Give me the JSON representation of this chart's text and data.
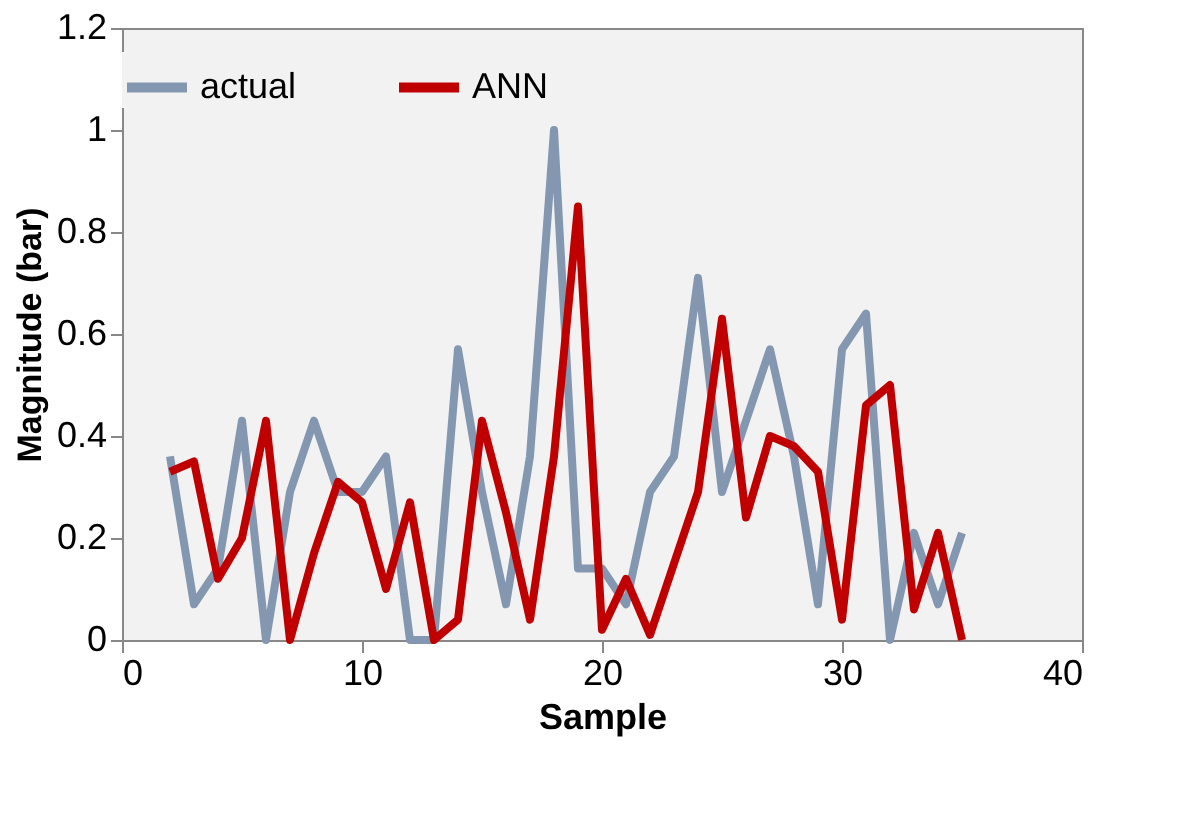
{
  "chart_data": {
    "type": "line",
    "xlabel": "Sample",
    "ylabel": "Magnitude (bar)",
    "x": [
      2,
      3,
      4,
      5,
      6,
      7,
      8,
      9,
      10,
      11,
      12,
      13,
      14,
      15,
      16,
      17,
      18,
      19,
      20,
      21,
      22,
      23,
      24,
      25,
      26,
      27,
      28,
      29,
      30,
      31,
      32,
      33,
      34,
      35
    ],
    "series": [
      {
        "name": "actual",
        "color": "#8497b0",
        "values": [
          0.36,
          0.07,
          0.14,
          0.43,
          0,
          0.29,
          0.43,
          0.29,
          0.29,
          0.36,
          0,
          0,
          0.57,
          0.29,
          0.07,
          0.36,
          1.0,
          0.14,
          0.14,
          0.07,
          0.29,
          0.36,
          0.71,
          0.29,
          0.43,
          0.57,
          0.36,
          0.07,
          0.57,
          0.64,
          0,
          0.21,
          0.07,
          0.21
        ]
      },
      {
        "name": "ANN",
        "color": "#c00000",
        "values": [
          0.33,
          0.35,
          0.12,
          0.2,
          0.43,
          0,
          0.17,
          0.31,
          0.27,
          0.1,
          0.27,
          0,
          0.04,
          0.43,
          0.25,
          0.04,
          0.36,
          0.85,
          0.02,
          0.12,
          0.01,
          0.15,
          0.29,
          0.63,
          0.24,
          0.4,
          0.38,
          0.33,
          0.04,
          0.46,
          0.5,
          0.06,
          0.21,
          0
        ]
      }
    ],
    "xlim": [
      0,
      40
    ],
    "xticks": [
      0,
      10,
      20,
      30,
      40
    ],
    "ylim": [
      0,
      1.2
    ],
    "yticks": [
      0,
      0.2,
      0.4,
      0.6,
      0.8,
      1,
      1.2
    ],
    "grid": false,
    "legend": "top",
    "marker": "none",
    "line_style": "solid"
  }
}
